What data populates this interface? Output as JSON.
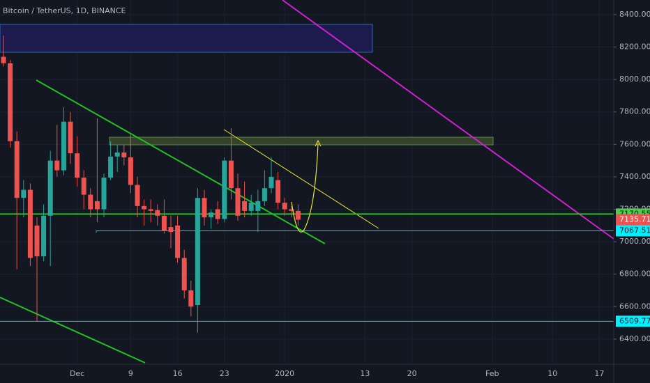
{
  "chart_data": {
    "type": "candlestick",
    "title": "Bitcoin / TetherUS, 1D, BINANCE",
    "up_color": "#26a69a",
    "down_color": "#ef5350",
    "categories": [
      null,
      null,
      null,
      null,
      null,
      null,
      null,
      null,
      null,
      null,
      null,
      "Dec",
      null,
      null,
      null,
      null,
      null,
      null,
      null,
      "9",
      null,
      null,
      null,
      null,
      null,
      null,
      "16",
      null,
      null,
      null,
      null,
      null,
      null,
      "23",
      null,
      null,
      null,
      null,
      null,
      null,
      null,
      null,
      "2020",
      null,
      null,
      null,
      null,
      null,
      null,
      null,
      null,
      null,
      null,
      null,
      "13",
      null,
      null,
      null,
      null,
      null,
      null,
      "20",
      null,
      null,
      null,
      null,
      null,
      null,
      null,
      null,
      null,
      null,
      null,
      "Feb",
      null,
      null,
      null,
      null,
      null,
      null,
      null,
      null,
      "10",
      null,
      null,
      null,
      null,
      null,
      null,
      "17",
      null,
      null
    ],
    "open": [
      8140,
      8100,
      7620,
      7270,
      7320,
      7100,
      6910,
      7160,
      7500,
      7440,
      7740,
      7545,
      7395,
      7290,
      7250,
      7200,
      7395,
      7525,
      7550,
      7520,
      7350,
      7220,
      7200,
      7195,
      7160,
      7090,
      7100,
      6900,
      6700,
      6610,
      7270,
      7150,
      7200,
      7140,
      7500,
      7330,
      7250,
      7190,
      7190,
      7250,
      7330,
      7380,
      7240,
      7200,
      7190,
      null,
      null,
      null,
      null,
      null,
      null,
      null,
      null,
      null,
      null,
      null,
      null,
      null,
      null,
      null,
      null,
      null,
      null,
      null,
      null,
      null,
      null,
      null,
      null,
      null,
      null,
      null,
      null,
      null,
      null,
      null,
      null,
      null,
      null,
      null,
      null,
      null,
      null,
      null,
      null,
      null,
      null,
      null,
      null,
      null,
      null,
      null
    ],
    "high": [
      8270,
      8120,
      7680,
      7380,
      7360,
      7150,
      7230,
      7560,
      7720,
      7830,
      7800,
      7650,
      7440,
      7330,
      7760,
      7420,
      7620,
      7600,
      7600,
      7660,
      7400,
      7260,
      7260,
      7230,
      7260,
      7160,
      7160,
      6950,
      6760,
      7330,
      7320,
      7200,
      7250,
      7520,
      7700,
      7420,
      7370,
      7290,
      7320,
      7440,
      7520,
      7430,
      7270,
      7220,
      7230,
      null,
      null,
      null,
      null,
      null,
      null,
      null,
      null,
      null,
      null,
      null,
      null,
      null,
      null,
      null,
      null,
      null,
      null,
      null,
      null,
      null,
      null,
      null,
      null,
      null,
      null,
      null,
      null,
      null,
      null,
      null,
      null,
      null,
      null,
      null,
      null,
      null,
      null,
      null,
      null,
      null,
      null,
      null,
      null,
      null,
      null,
      null
    ],
    "low": [
      8080,
      7580,
      6830,
      7150,
      6850,
      6510,
      6880,
      6850,
      7400,
      7410,
      7480,
      7340,
      7200,
      7150,
      7120,
      7150,
      7380,
      7430,
      7470,
      7300,
      7150,
      7100,
      7120,
      7100,
      7050,
      6960,
      6870,
      6650,
      6540,
      6440,
      7100,
      7080,
      7110,
      7120,
      7260,
      7130,
      7150,
      7160,
      7060,
      7220,
      7300,
      7200,
      7160,
      7150,
      7100,
      null,
      null,
      null,
      null,
      null,
      null,
      null,
      null,
      null,
      null,
      null,
      null,
      null,
      null,
      null,
      null,
      null,
      null,
      null,
      null,
      null,
      null,
      null,
      null,
      null,
      null,
      null,
      null,
      null,
      null,
      null,
      null,
      null,
      null,
      null,
      null,
      null,
      null,
      null,
      null,
      null,
      null,
      null,
      null,
      null,
      null,
      null
    ],
    "close": [
      8100,
      7620,
      7270,
      7320,
      6900,
      6910,
      7160,
      7500,
      7440,
      7740,
      7545,
      7395,
      7290,
      7200,
      7200,
      7395,
      7525,
      7550,
      7520,
      7350,
      7220,
      7200,
      7190,
      7160,
      7070,
      7060,
      6900,
      6700,
      6600,
      7270,
      7150,
      7180,
      7140,
      7500,
      7330,
      7160,
      7190,
      7240,
      7250,
      7330,
      7400,
      7240,
      7200,
      7190,
      7135.71,
      null,
      null,
      null,
      null,
      null,
      null,
      null,
      null,
      null,
      null,
      null,
      null,
      null,
      null,
      null,
      null,
      null,
      null,
      null,
      null,
      null,
      null,
      null,
      null,
      null,
      null,
      null,
      null,
      null,
      null,
      null,
      null,
      null,
      null,
      null,
      null,
      null,
      null,
      null,
      null,
      null,
      null,
      null,
      null,
      null,
      null,
      null
    ],
    "ylim": [
      6245,
      8490
    ],
    "yticks": [
      {
        "value": 6400,
        "label": "6400.00"
      },
      {
        "value": 6600,
        "label": "6600.00"
      },
      {
        "value": 6800,
        "label": "6800.00"
      },
      {
        "value": 7000,
        "label": "7000.00"
      },
      {
        "value": 7200,
        "label": "7200.00"
      },
      {
        "value": 7400,
        "label": "7400.00"
      },
      {
        "value": 7600,
        "label": "7600.00"
      },
      {
        "value": 7800,
        "label": "7800.00"
      },
      {
        "value": 8000,
        "label": "8000.00"
      },
      {
        "value": 8200,
        "label": "8200.00"
      },
      {
        "value": 8400,
        "label": "8400.00"
      }
    ],
    "levels": [
      {
        "value": 7170.55,
        "color": "#22c022"
      },
      {
        "value": 7067.51,
        "color": "#26c6da"
      },
      {
        "value": 6509.77,
        "color": "#26c6da"
      }
    ]
  }
}
